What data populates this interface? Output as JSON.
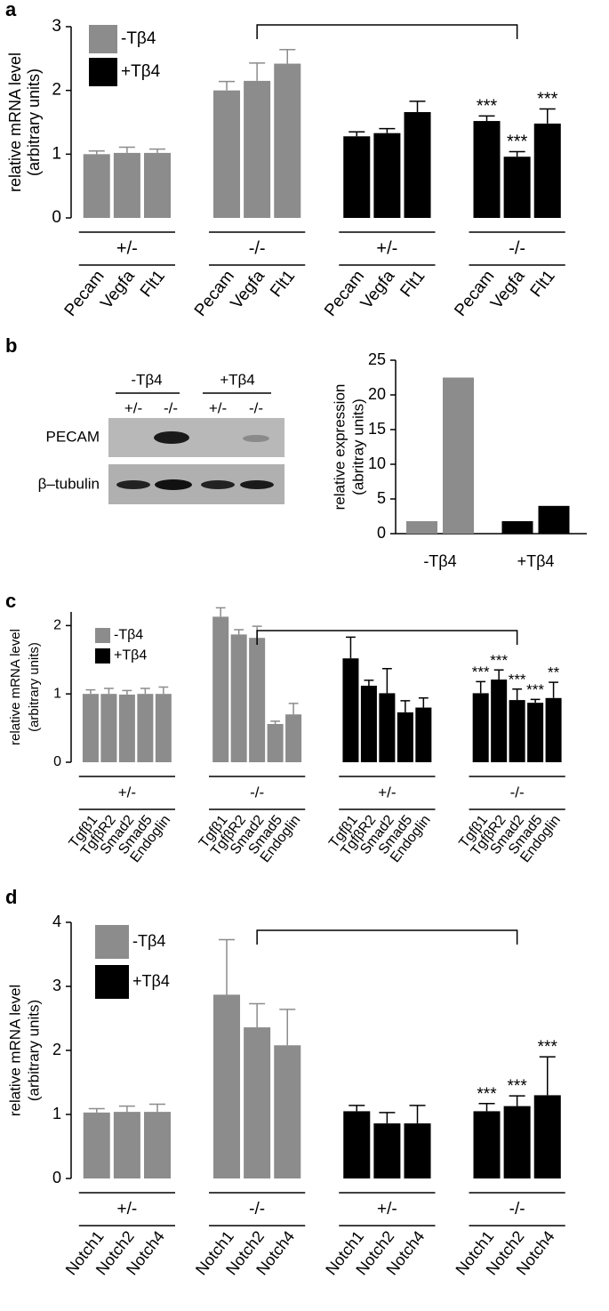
{
  "chart_data": [
    {
      "type": "grouped_bar",
      "panel": "a",
      "ylabel": [
        "relative mRNA level",
        "(arbitrary units)"
      ],
      "ylim": [
        0,
        3
      ],
      "yticks": [
        0,
        1,
        2,
        3
      ],
      "categories": [
        "Pecam",
        "Vegfa",
        "Flt1"
      ],
      "series": [
        {
          "name": "-Tβ4",
          "color": "#8c8c8c",
          "groups": [
            "+/-",
            "-/-"
          ],
          "values": [
            [
              1.0,
              1.02,
              1.02
            ],
            [
              2.0,
              2.15,
              2.42
            ]
          ],
          "errors": [
            [
              0.05,
              0.09,
              0.06
            ],
            [
              0.14,
              0.28,
              0.22
            ]
          ]
        },
        {
          "name": "+Tβ4",
          "color": "#000000",
          "groups": [
            "+/-",
            "-/-"
          ],
          "values": [
            [
              1.28,
              1.33,
              1.66
            ],
            [
              1.52,
              0.96,
              1.48
            ]
          ],
          "errors": [
            [
              0.07,
              0.07,
              0.17
            ],
            [
              0.08,
              0.08,
              0.23
            ]
          ],
          "significance": [
            null,
            [
              "***",
              "***",
              "***"
            ]
          ]
        }
      ]
    },
    {
      "type": "bar_pair",
      "panel": "b",
      "ylabel": [
        "relative expression",
        "(abritray units)"
      ],
      "ylim": [
        0,
        25
      ],
      "yticks": [
        0,
        5,
        10,
        15,
        20,
        25
      ],
      "categories": [
        "-Tβ4",
        "+Tβ4"
      ],
      "colors": [
        "#8c8c8c",
        "#000000"
      ],
      "values": [
        [
          1.8,
          22.5
        ],
        [
          1.8,
          4.0
        ]
      ]
    },
    {
      "type": "grouped_bar",
      "panel": "c",
      "ylabel": [
        "relative mRNA level",
        "(arbitrary units)"
      ],
      "ylim": [
        0,
        2.2
      ],
      "yticks": [
        0,
        1,
        2
      ],
      "categories": [
        "Tgfβ1",
        "TgfβR2",
        "Smad2",
        "Smad5",
        "Endoglin"
      ],
      "series": [
        {
          "name": "-Tβ4",
          "color": "#8c8c8c",
          "groups": [
            "+/-",
            "-/-"
          ],
          "values": [
            [
              1.0,
              1.0,
              0.99,
              1.0,
              1.0
            ],
            [
              2.13,
              1.87,
              1.82,
              0.56,
              0.7
            ]
          ],
          "errors": [
            [
              0.06,
              0.08,
              0.06,
              0.08,
              0.1
            ],
            [
              0.13,
              0.07,
              0.17,
              0.04,
              0.16
            ]
          ]
        },
        {
          "name": "+Tβ4",
          "color": "#000000",
          "groups": [
            "+/-",
            "-/-"
          ],
          "values": [
            [
              1.52,
              1.12,
              1.01,
              0.73,
              0.8
            ],
            [
              1.01,
              1.21,
              0.91,
              0.87,
              0.94
            ]
          ],
          "errors": [
            [
              0.31,
              0.08,
              0.36,
              0.17,
              0.14
            ],
            [
              0.17,
              0.14,
              0.16,
              0.05,
              0.23
            ]
          ],
          "significance": [
            null,
            [
              "***",
              "***",
              "***",
              "***",
              "**"
            ]
          ]
        }
      ]
    },
    {
      "type": "grouped_bar",
      "panel": "d",
      "ylabel": [
        "relative mRNA level",
        "(arbitrary units)"
      ],
      "ylim": [
        0,
        4
      ],
      "yticks": [
        0,
        1,
        2,
        3,
        4
      ],
      "categories": [
        "Notch1",
        "Notch2",
        "Notch4"
      ],
      "series": [
        {
          "name": "-Tβ4",
          "color": "#8c8c8c",
          "groups": [
            "+/-",
            "-/-"
          ],
          "values": [
            [
              1.03,
              1.04,
              1.04
            ],
            [
              2.87,
              2.36,
              2.08
            ]
          ],
          "errors": [
            [
              0.06,
              0.09,
              0.12
            ],
            [
              0.86,
              0.37,
              0.56
            ]
          ]
        },
        {
          "name": "+Tβ4",
          "color": "#000000",
          "groups": [
            "+/-",
            "-/-"
          ],
          "values": [
            [
              1.05,
              0.86,
              0.86
            ],
            [
              1.05,
              1.13,
              1.3
            ]
          ],
          "errors": [
            [
              0.09,
              0.17,
              0.28
            ],
            [
              0.12,
              0.16,
              0.6
            ]
          ],
          "significance": [
            null,
            [
              "***",
              "***",
              "***"
            ]
          ]
        }
      ]
    }
  ],
  "blot": {
    "groups": [
      "-Tβ4",
      "+Tβ4"
    ],
    "genotypes": [
      "+/-",
      "-/-",
      "+/-",
      "-/-"
    ],
    "rows": [
      "PECAM",
      "β–tubulin"
    ]
  }
}
